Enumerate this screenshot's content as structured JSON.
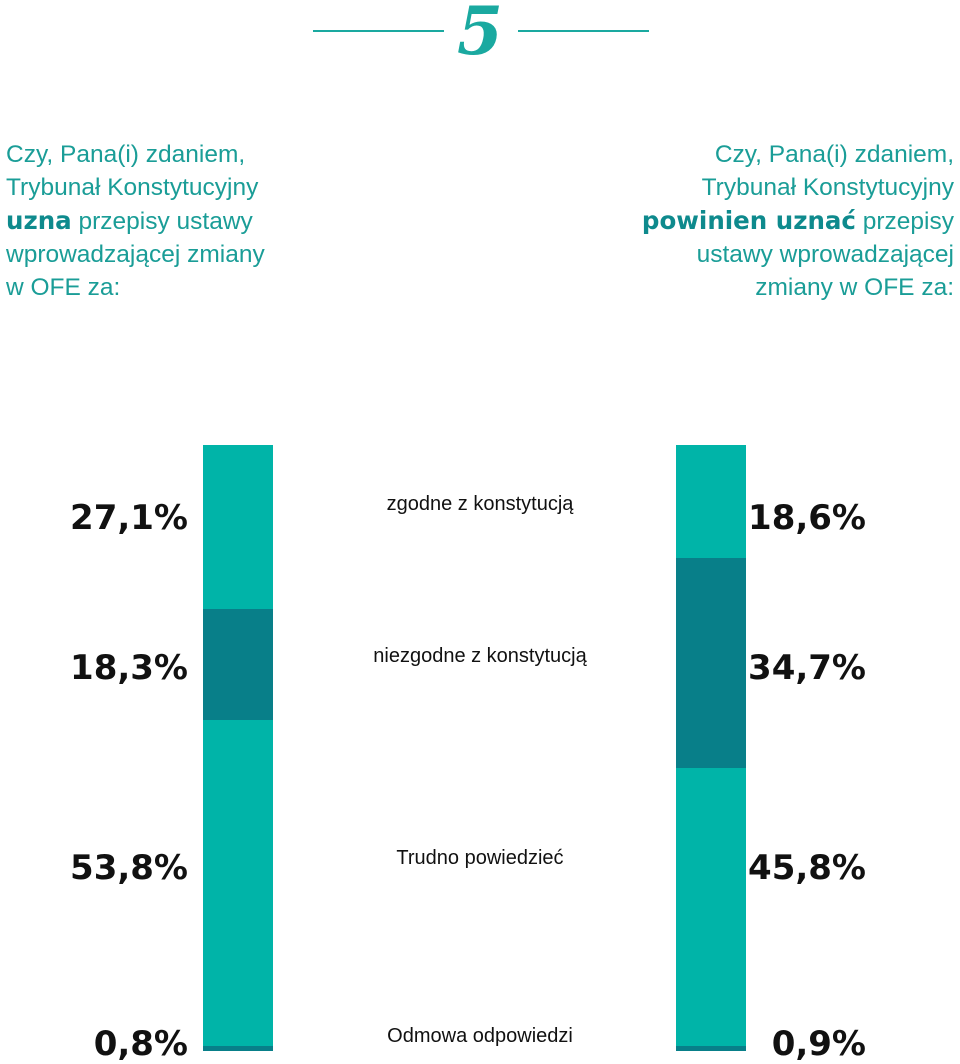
{
  "header": {
    "number": "5"
  },
  "questions": {
    "left": {
      "line1": "Czy, Pana(i) zdaniem,",
      "line2": "Trybunał Konstytucyjny",
      "emph": "uzna",
      "line3_rest": " przepisy ustawy",
      "line4": "wprowadzającej zmiany",
      "line5": "w OFE za:"
    },
    "right": {
      "line1": "Czy, Pana(i) zdaniem,",
      "line2": "Trybunał Konstytucyjny",
      "emph": "powinien uznać",
      "line3_rest": " przepisy",
      "line4": "ustawy wprowadzającej",
      "line5": "zmiany w OFE za:"
    }
  },
  "colors": {
    "light_teal": "#00b4a8",
    "dark_teal": "#087f89",
    "accent": "#1aa9a0"
  },
  "chart_data": {
    "type": "bar",
    "stacked": true,
    "orientation": "vertical",
    "categories": [
      "zgodne z konstytucją",
      "niezgodne z konstytucją",
      "Trudno powiedzieć",
      "Odmowa odpowiedzi"
    ],
    "series": [
      {
        "values": [
          27.1,
          18.3,
          53.8,
          0.8
        ],
        "labels": [
          "27,1%",
          "18,3%",
          "53,8%",
          "0,8%"
        ]
      },
      {
        "values": [
          18.6,
          34.7,
          45.8,
          0.9
        ],
        "labels": [
          "18,6%",
          "34,7%",
          "45,8%",
          "0,9%"
        ]
      }
    ],
    "segment_colors": [
      "#00b4a8",
      "#087f89",
      "#00b4a8",
      "#087f89"
    ]
  }
}
